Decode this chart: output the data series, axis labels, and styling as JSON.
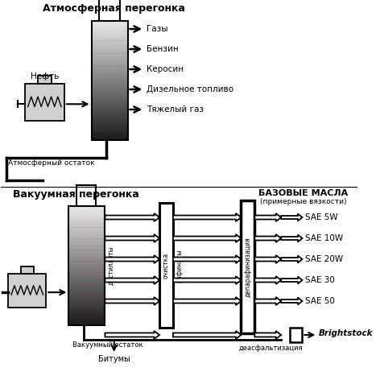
{
  "title_atm": "Атмосферная перегонка",
  "title_vac": "Вакуумная перегонка",
  "title_base_oils": "БАЗОВЫЕ МАСЛА",
  "subtitle_base_oils": "(примерные вязкости)",
  "atm_products": [
    "Газы",
    "Бензин",
    "Керосин",
    "Дизельное топливо",
    "Тяжелый газ"
  ],
  "vac_labels": [
    "дистилляты",
    "очистка",
    "рафинаты",
    "депарафинизация"
  ],
  "sae_products": [
    "SAE 5W",
    "SAE 10W",
    "SAE 20W",
    "SAE 30",
    "SAE 50"
  ],
  "brightstock_label": "Brightstock",
  "atm_residue_label": "Атмосферный остаток",
  "vac_residue_label": "Вакуумный остаток",
  "bitum_label": "Битумы",
  "neft_label": "Нефть",
  "deasphal_label": "деасфальтизация",
  "bg_color": "#ffffff"
}
